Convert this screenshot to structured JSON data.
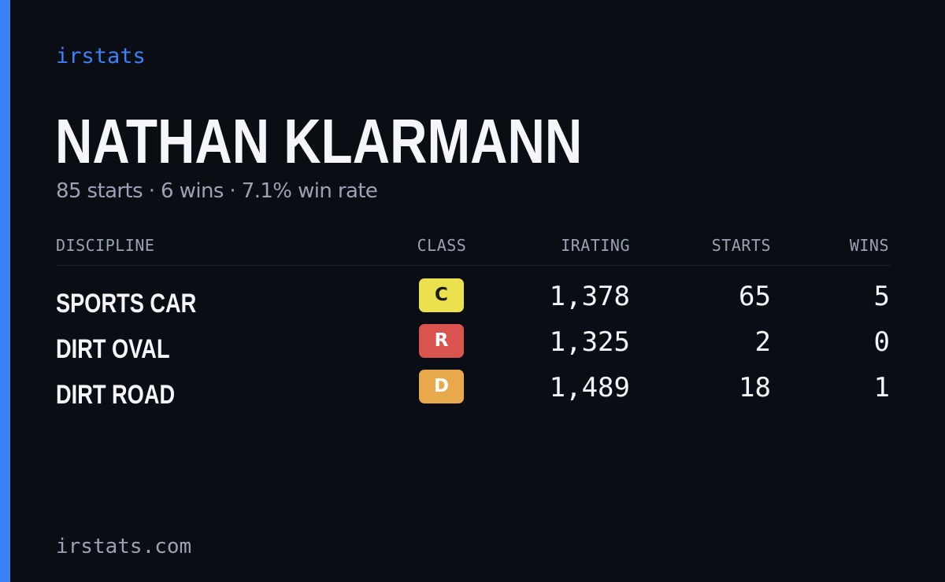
{
  "brand": "irstats",
  "driver": {
    "name": "NATHAN KLARMANN",
    "summary": "85 starts · 6 wins · 7.1% win rate"
  },
  "table": {
    "headers": {
      "discipline": "DISCIPLINE",
      "class": "CLASS",
      "irating": "IRATING",
      "starts": "STARTS",
      "wins": "WINS"
    },
    "rows": [
      {
        "discipline": "SPORTS CAR",
        "class": "C",
        "class_color": "#ebe04e",
        "class_text_color": "#1a1a1a",
        "irating": "1,378",
        "starts": "65",
        "wins": "5"
      },
      {
        "discipline": "DIRT OVAL",
        "class": "R",
        "class_color": "#d9534f",
        "class_text_color": "#ffffff",
        "irating": "1,325",
        "starts": "2",
        "wins": "0"
      },
      {
        "discipline": "DIRT ROAD",
        "class": "D",
        "class_color": "#e8a94c",
        "class_text_color": "#ffffff",
        "irating": "1,489",
        "starts": "18",
        "wins": "1"
      }
    ]
  },
  "footer": {
    "url": "irstats.com"
  },
  "colors": {
    "accent": "#3b82f6",
    "background": "#0b0d14",
    "text_primary": "#f5f6fa",
    "text_muted": "#9aa3b5"
  }
}
